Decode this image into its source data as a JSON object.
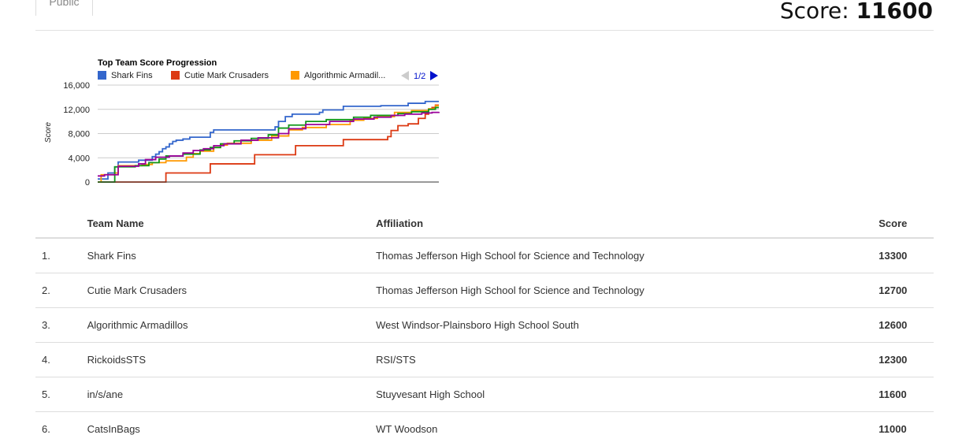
{
  "tabs": {
    "public_label": "Public"
  },
  "header": {
    "score_label": "Score:",
    "score_value": "11600"
  },
  "colors": {
    "Shark Fins": "#3366cc",
    "Cutie Mark Crusaders": "#dc3912",
    "Algorithmic Armadillos": "#ff9900",
    "RickoidsSTS": "#109618",
    "in/s/ane": "#990099"
  },
  "chart_data": {
    "type": "line",
    "title": "Top Team Score Progression",
    "ylabel": "Score",
    "xlabel": "",
    "ylim": [
      0,
      16000
    ],
    "yticks": [
      "0",
      "4,000",
      "8,000",
      "12,000",
      "16,000"
    ],
    "ytick_values": [
      0,
      4000,
      8000,
      12000,
      16000
    ],
    "grid": true,
    "legend_position": "top",
    "legend_entries": [
      "Shark Fins",
      "Cutie Mark Crusaders",
      "Algorithmic Armadil..."
    ],
    "legend_page": "1/2",
    "x_range": [
      0,
      100
    ],
    "series": [
      {
        "name": "Shark Fins",
        "color": "#3366cc",
        "points": [
          [
            0,
            500
          ],
          [
            3,
            1500
          ],
          [
            5,
            2500
          ],
          [
            6,
            3300
          ],
          [
            12,
            3600
          ],
          [
            16,
            4200
          ],
          [
            17,
            4600
          ],
          [
            18,
            5000
          ],
          [
            19,
            5500
          ],
          [
            20,
            5800
          ],
          [
            21,
            6300
          ],
          [
            22,
            6700
          ],
          [
            23,
            6900
          ],
          [
            25,
            7100
          ],
          [
            27,
            7400
          ],
          [
            33,
            8200
          ],
          [
            34,
            8600
          ],
          [
            51,
            8600
          ],
          [
            52,
            9100
          ],
          [
            53,
            10000
          ],
          [
            55,
            10800
          ],
          [
            57,
            11200
          ],
          [
            65,
            11500
          ],
          [
            66,
            11900
          ],
          [
            72,
            12500
          ],
          [
            83,
            12600
          ],
          [
            89,
            12600
          ],
          [
            91,
            13000
          ],
          [
            96,
            13300
          ],
          [
            100,
            13300
          ]
        ]
      },
      {
        "name": "Cutie Mark Crusaders",
        "color": "#dc3912",
        "points": [
          [
            0,
            0
          ],
          [
            20,
            0
          ],
          [
            20,
            1500
          ],
          [
            33,
            1500
          ],
          [
            33,
            3000
          ],
          [
            46,
            3000
          ],
          [
            46,
            4500
          ],
          [
            58,
            4500
          ],
          [
            58,
            6000
          ],
          [
            72,
            6000
          ],
          [
            72,
            7000
          ],
          [
            85,
            7000
          ],
          [
            85,
            7500
          ],
          [
            86,
            8500
          ],
          [
            88,
            9300
          ],
          [
            91,
            9600
          ],
          [
            94,
            10500
          ],
          [
            96,
            11200
          ],
          [
            97,
            12000
          ],
          [
            98,
            12300
          ],
          [
            99,
            12700
          ],
          [
            100,
            12700
          ]
        ]
      },
      {
        "name": "Algorithmic Armadillos",
        "color": "#ff9900",
        "points": [
          [
            0,
            0
          ],
          [
            1,
            1200
          ],
          [
            5,
            1500
          ],
          [
            6,
            2700
          ],
          [
            13,
            2900
          ],
          [
            16,
            3200
          ],
          [
            20,
            3500
          ],
          [
            26,
            4100
          ],
          [
            28,
            4700
          ],
          [
            30,
            5100
          ],
          [
            34,
            5700
          ],
          [
            36,
            6100
          ],
          [
            38,
            6400
          ],
          [
            45,
            6900
          ],
          [
            51,
            7600
          ],
          [
            56,
            8600
          ],
          [
            60,
            9000
          ],
          [
            67,
            9500
          ],
          [
            74,
            10200
          ],
          [
            78,
            10500
          ],
          [
            82,
            10800
          ],
          [
            87,
            11500
          ],
          [
            92,
            11800
          ],
          [
            97,
            12100
          ],
          [
            99,
            12600
          ],
          [
            100,
            12600
          ]
        ]
      },
      {
        "name": "RickoidsSTS",
        "color": "#109618",
        "points": [
          [
            0,
            0
          ],
          [
            4,
            0
          ],
          [
            5,
            2500
          ],
          [
            11,
            2700
          ],
          [
            15,
            3200
          ],
          [
            18,
            3800
          ],
          [
            20,
            4300
          ],
          [
            25,
            4600
          ],
          [
            30,
            5300
          ],
          [
            33,
            5700
          ],
          [
            36,
            6300
          ],
          [
            40,
            6800
          ],
          [
            45,
            7200
          ],
          [
            50,
            7800
          ],
          [
            53,
            8900
          ],
          [
            56,
            9400
          ],
          [
            61,
            10000
          ],
          [
            67,
            10300
          ],
          [
            75,
            10700
          ],
          [
            80,
            11000
          ],
          [
            88,
            11300
          ],
          [
            92,
            11600
          ],
          [
            97,
            12000
          ],
          [
            99,
            12300
          ],
          [
            100,
            12300
          ]
        ]
      },
      {
        "name": "in/s/ane",
        "color": "#990099",
        "points": [
          [
            0,
            1000
          ],
          [
            2,
            1200
          ],
          [
            6,
            2600
          ],
          [
            12,
            3000
          ],
          [
            14,
            3700
          ],
          [
            17,
            4100
          ],
          [
            21,
            4300
          ],
          [
            25,
            4800
          ],
          [
            28,
            5200
          ],
          [
            31,
            5500
          ],
          [
            34,
            6000
          ],
          [
            37,
            6300
          ],
          [
            42,
            6900
          ],
          [
            47,
            7300
          ],
          [
            53,
            8000
          ],
          [
            56,
            8800
          ],
          [
            61,
            9500
          ],
          [
            68,
            10000
          ],
          [
            75,
            10400
          ],
          [
            81,
            10700
          ],
          [
            86,
            11000
          ],
          [
            90,
            11200
          ],
          [
            95,
            11400
          ],
          [
            98,
            11500
          ],
          [
            100,
            11600
          ]
        ]
      }
    ]
  },
  "table": {
    "headers": {
      "team": "Team Name",
      "affiliation": "Affiliation",
      "score": "Score"
    },
    "rows": [
      {
        "rank": "1.",
        "team": "Shark Fins",
        "affiliation": "Thomas Jefferson High School for Science and Technology",
        "score": "13300"
      },
      {
        "rank": "2.",
        "team": "Cutie Mark Crusaders",
        "affiliation": "Thomas Jefferson High School for Science and Technology",
        "score": "12700"
      },
      {
        "rank": "3.",
        "team": "Algorithmic Armadillos",
        "affiliation": "West Windsor-Plainsboro High School South",
        "score": "12600"
      },
      {
        "rank": "4.",
        "team": "RickoidsSTS",
        "affiliation": "RSI/STS",
        "score": "12300"
      },
      {
        "rank": "5.",
        "team": "in/s/ane",
        "affiliation": "Stuyvesant High School",
        "score": "11600"
      },
      {
        "rank": "6.",
        "team": "CatsInBags",
        "affiliation": "WT Woodson",
        "score": "11000"
      }
    ]
  }
}
